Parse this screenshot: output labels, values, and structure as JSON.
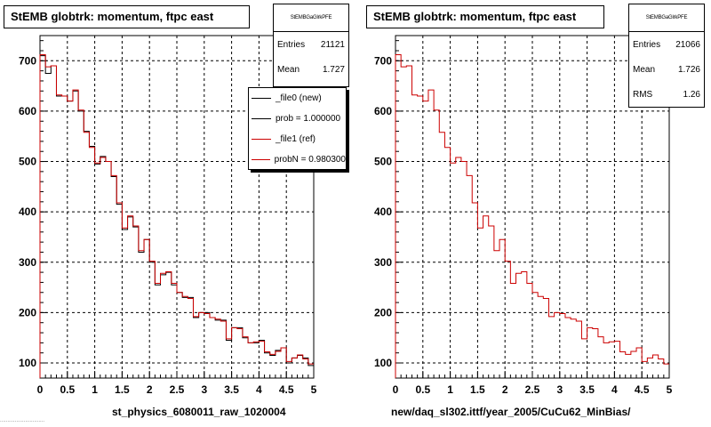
{
  "pads": [
    {
      "id": "left",
      "title": "StEMB globtrk: momentum, ftpc east",
      "stats": {
        "name": "StEMBGaGlrkPFE",
        "rows": [
          {
            "label": "Entries",
            "value": "21121"
          },
          {
            "label": "Mean",
            "value": "1.727"
          }
        ]
      },
      "legend": [
        {
          "label": "_file0 (new)",
          "color": "#000000"
        },
        {
          "label": "prob = 1.000000",
          "color": "#000000"
        },
        {
          "label": "_file1 (ref)",
          "color": "#cc0000"
        },
        {
          "label": "probN = 0.980300",
          "color": "#cc0000"
        }
      ],
      "xtitle": "st_physics_6080011_raw_1020004"
    },
    {
      "id": "right",
      "title": "StEMB globtrk: momentum, ftpc east",
      "stats": {
        "name": "StEMBGaGlrkPFE",
        "rows": [
          {
            "label": "Entries",
            "value": "21066"
          },
          {
            "label": "Mean",
            "value": "1.726"
          },
          {
            "label": "RMS",
            "value": "1.26"
          }
        ]
      },
      "xtitle": "new/daq_sl302.ittf/year_2005/CuCu62_MinBias/"
    }
  ],
  "footnote": "..............................",
  "colors": {
    "new": "#000000",
    "ref": "#cc0000",
    "grid": "#000000"
  },
  "chart_data": [
    {
      "type": "line",
      "title": "StEMB globtrk: momentum, ftpc east",
      "xlabel": "st_physics_6080011_raw_1020004",
      "ylabel": "",
      "xlim": [
        0,
        5
      ],
      "ylim": [
        70,
        750
      ],
      "x_ticks": [
        0,
        0.5,
        1,
        1.5,
        2,
        2.5,
        3,
        3.5,
        4,
        4.5,
        5
      ],
      "y_ticks": [
        100,
        200,
        300,
        400,
        500,
        600,
        700
      ],
      "grid": true,
      "step": true,
      "bin_width": 0.1,
      "bin_edges_start": 0,
      "series": [
        {
          "name": "_file0 (new)",
          "color": "#000000",
          "values": [
            710,
            675,
            690,
            630,
            630,
            620,
            640,
            600,
            560,
            530,
            495,
            510,
            500,
            470,
            415,
            365,
            390,
            370,
            320,
            345,
            300,
            255,
            275,
            280,
            255,
            240,
            230,
            230,
            190,
            200,
            200,
            190,
            185,
            185,
            145,
            170,
            170,
            150,
            140,
            140,
            145,
            120,
            115,
            125,
            130,
            100,
            110,
            115,
            110,
            95
          ]
        },
        {
          "name": "_file1 (ref)",
          "color": "#cc0000",
          "values": [
            712,
            688,
            690,
            632,
            630,
            620,
            642,
            602,
            558,
            528,
            497,
            508,
            500,
            472,
            418,
            368,
            392,
            372,
            323,
            345,
            302,
            258,
            278,
            281,
            258,
            240,
            232,
            228,
            192,
            200,
            198,
            190,
            187,
            183,
            148,
            170,
            168,
            152,
            140,
            142,
            143,
            122,
            117,
            123,
            130,
            103,
            110,
            116,
            108,
            98
          ]
        }
      ]
    },
    {
      "type": "line",
      "title": "StEMB globtrk: momentum, ftpc east",
      "xlabel": "new/daq_sl302.ittf/year_2005/CuCu62_MinBias/",
      "ylabel": "",
      "xlim": [
        0,
        5
      ],
      "ylim": [
        70,
        750
      ],
      "x_ticks": [
        0,
        0.5,
        1,
        1.5,
        2,
        2.5,
        3,
        3.5,
        4,
        4.5,
        5
      ],
      "y_ticks": [
        100,
        200,
        300,
        400,
        500,
        600,
        700
      ],
      "grid": true,
      "step": true,
      "bin_width": 0.1,
      "bin_edges_start": 0,
      "series": [
        {
          "name": "",
          "color": "#cc0000",
          "values": [
            712,
            688,
            690,
            632,
            630,
            620,
            642,
            602,
            558,
            528,
            497,
            508,
            500,
            472,
            418,
            368,
            392,
            372,
            323,
            345,
            302,
            258,
            278,
            281,
            258,
            240,
            232,
            228,
            192,
            200,
            198,
            190,
            187,
            183,
            148,
            170,
            168,
            152,
            140,
            142,
            143,
            122,
            117,
            123,
            130,
            103,
            110,
            116,
            108,
            98
          ]
        }
      ]
    }
  ]
}
